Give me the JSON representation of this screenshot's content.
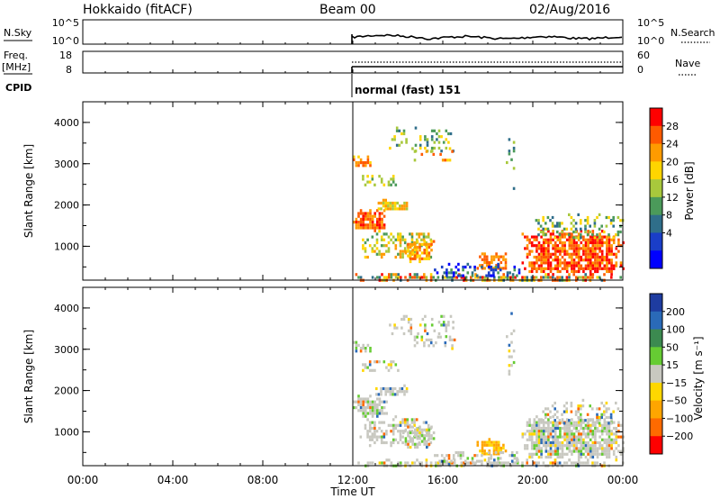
{
  "header": {
    "station": "Hokkaido (fitACF)",
    "beam": "Beam 00",
    "date": "02/Aug/2016"
  },
  "panels": {
    "nsky": {
      "left_label": "N.Sky",
      "right_label": "N.Search",
      "left_ticks": [
        "10^5",
        "10^0"
      ],
      "right_ticks": [
        "10^5",
        "10^0"
      ]
    },
    "freq": {
      "left_label": "Freq.",
      "left_unit": "[MHz]",
      "right_label": "Nave",
      "left_ticks": [
        "18",
        "8"
      ],
      "right_ticks": [
        "60",
        "0"
      ]
    },
    "cpid": {
      "label": "CPID",
      "mode_text": "normal (fast) 151"
    }
  },
  "chart_data": [
    {
      "type": "heatmap",
      "name": "power",
      "ylabel": "Slant Range [km]",
      "yticks": [
        "4000",
        "3000",
        "2000",
        "1000"
      ],
      "ylim": [
        180,
        4500
      ],
      "xlim_hours": [
        0,
        24
      ],
      "colorbar": {
        "label": "Power [dB]",
        "ticks": [
          "28",
          "24",
          "20",
          "16",
          "12",
          "8",
          "4"
        ],
        "colors": [
          "#ff0000",
          "#ff5a00",
          "#ff9b00",
          "#ffd500",
          "#a8c83c",
          "#4b9a5a",
          "#2f6e8a",
          "#1a3ec8",
          "#0000ff"
        ]
      },
      "data_start_hour": 12
    },
    {
      "type": "heatmap",
      "name": "velocity",
      "ylabel": "Slant Range [km]",
      "yticks": [
        "4000",
        "3000",
        "2000",
        "1000"
      ],
      "ylim": [
        180,
        4500
      ],
      "xlim_hours": [
        0,
        24
      ],
      "colorbar": {
        "label": "Velocity [m s⁻¹]",
        "ticks": [
          "200",
          "100",
          "50",
          "15",
          "−15",
          "−50",
          "−100",
          "−200"
        ],
        "colors": [
          "#1e3ca0",
          "#2a6ab8",
          "#3c8a50",
          "#66cc33",
          "#c8c8c0",
          "#ffd700",
          "#ffa500",
          "#ff6a00",
          "#ff0000"
        ]
      },
      "data_start_hour": 12
    }
  ],
  "xaxis": {
    "title": "Time UT",
    "ticks": [
      "00:00",
      "04:00",
      "08:00",
      "12:00",
      "16:00",
      "20:00",
      "00:00"
    ]
  },
  "colors": {
    "frame": "#000000",
    "background": "#ffffff"
  }
}
